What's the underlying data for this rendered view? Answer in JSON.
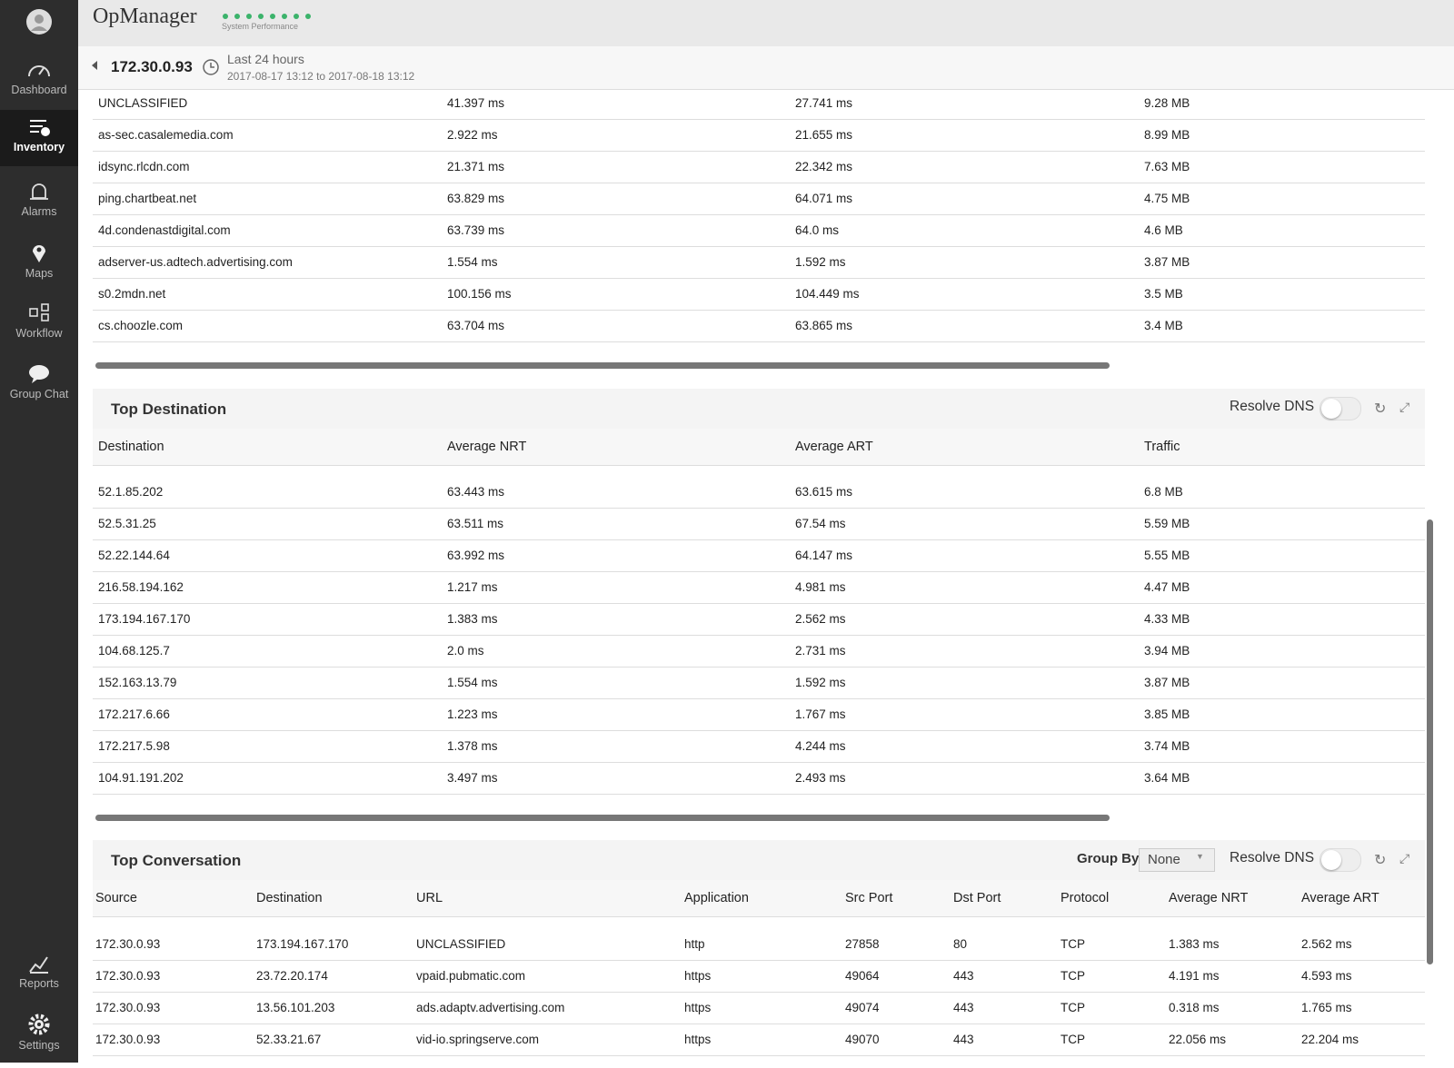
{
  "app": {
    "title": "OpManager",
    "perf_label": "System Performance"
  },
  "nav": {
    "items": [
      "Dashboard",
      "Inventory",
      "Alarms",
      "Maps",
      "Workflow",
      "Group Chat"
    ],
    "bottom": [
      "Reports",
      "Settings"
    ]
  },
  "header": {
    "device": "172.30.0.93",
    "period": "Last 24 hours",
    "range": "2017-08-17 13:12 to 2017-08-18 13:12"
  },
  "top_table": {
    "rows": [
      [
        "UNCLASSIFIED",
        "41.397 ms",
        "27.741 ms",
        "9.28 MB"
      ],
      [
        "as-sec.casalemedia.com",
        "2.922 ms",
        "21.655 ms",
        "8.99 MB"
      ],
      [
        "idsync.rlcdn.com",
        "21.371 ms",
        "22.342 ms",
        "7.63 MB"
      ],
      [
        "ping.chartbeat.net",
        "63.829 ms",
        "64.071 ms",
        "4.75 MB"
      ],
      [
        "4d.condenastdigital.com",
        "63.739 ms",
        "64.0 ms",
        "4.6 MB"
      ],
      [
        "adserver-us.adtech.advertising.com",
        "1.554 ms",
        "1.592 ms",
        "3.87 MB"
      ],
      [
        "s0.2mdn.net",
        "100.156 ms",
        "104.449 ms",
        "3.5 MB"
      ],
      [
        "cs.choozle.com",
        "63.704 ms",
        "63.865 ms",
        "3.4 MB"
      ]
    ]
  },
  "top_destination": {
    "title": "Top Destination",
    "resolve_dns": "Resolve DNS",
    "columns": [
      "Destination",
      "Average NRT",
      "Average ART",
      "Traffic"
    ],
    "rows": [
      [
        "52.1.85.202",
        "63.443 ms",
        "63.615 ms",
        "6.8 MB"
      ],
      [
        "52.5.31.25",
        "63.511 ms",
        "67.54 ms",
        "5.59 MB"
      ],
      [
        "52.22.144.64",
        "63.992 ms",
        "64.147 ms",
        "5.55 MB"
      ],
      [
        "216.58.194.162",
        "1.217 ms",
        "4.981 ms",
        "4.47 MB"
      ],
      [
        "173.194.167.170",
        "1.383 ms",
        "2.562 ms",
        "4.33 MB"
      ],
      [
        "104.68.125.7",
        "2.0 ms",
        "2.731 ms",
        "3.94 MB"
      ],
      [
        "152.163.13.79",
        "1.554 ms",
        "1.592 ms",
        "3.87 MB"
      ],
      [
        "172.217.6.66",
        "1.223 ms",
        "1.767 ms",
        "3.85 MB"
      ],
      [
        "172.217.5.98",
        "1.378 ms",
        "4.244 ms",
        "3.74 MB"
      ],
      [
        "104.91.191.202",
        "3.497 ms",
        "2.493 ms",
        "3.64 MB"
      ]
    ]
  },
  "top_conversation": {
    "title": "Top Conversation",
    "group_by": "Group By",
    "group_by_value": "None",
    "resolve_dns": "Resolve DNS",
    "columns": [
      "Source",
      "Destination",
      "URL",
      "Application",
      "Src Port",
      "Dst Port",
      "Protocol",
      "Average NRT",
      "Average ART"
    ],
    "rows": [
      [
        "172.30.0.93",
        "173.194.167.170",
        "UNCLASSIFIED",
        "http",
        "27858",
        "80",
        "TCP",
        "1.383 ms",
        "2.562 ms"
      ],
      [
        "172.30.0.93",
        "23.72.20.174",
        "vpaid.pubmatic.com",
        "https",
        "49064",
        "443",
        "TCP",
        "4.191 ms",
        "4.593 ms"
      ],
      [
        "172.30.0.93",
        "13.56.101.203",
        "ads.adaptv.advertising.com",
        "https",
        "49074",
        "443",
        "TCP",
        "0.318 ms",
        "1.765 ms"
      ],
      [
        "172.30.0.93",
        "52.33.21.67",
        "vid-io.springserve.com",
        "https",
        "49070",
        "443",
        "TCP",
        "22.056 ms",
        "22.204 ms"
      ]
    ]
  }
}
